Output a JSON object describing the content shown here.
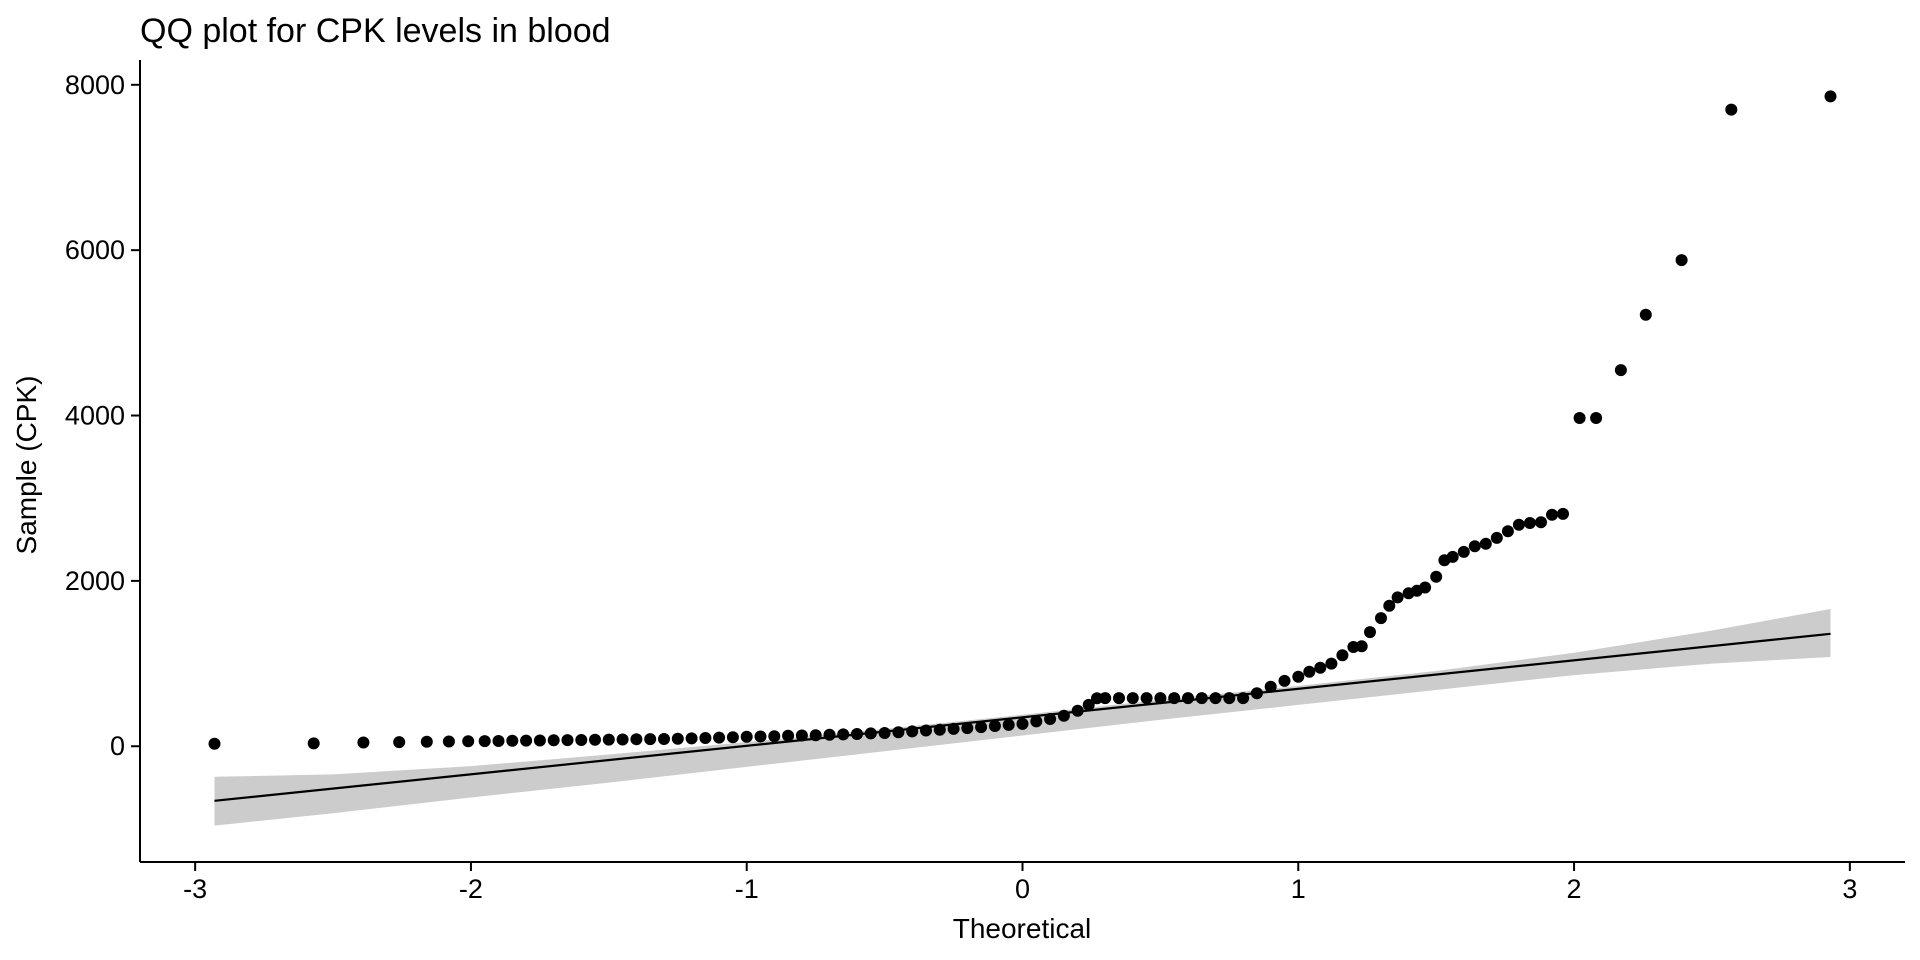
{
  "chart_data": {
    "type": "scatter",
    "title": "QQ plot for CPK levels in blood",
    "xlabel": "Theoretical",
    "ylabel": "Sample (CPK)",
    "xlim": [
      -3.2,
      3.2
    ],
    "ylim": [
      -1400,
      8300
    ],
    "x_ticks": [
      -3,
      -2,
      -1,
      0,
      1,
      2,
      3
    ],
    "x_tick_labels": [
      "-3",
      "-2",
      "-1",
      "0",
      "1",
      "2",
      "3"
    ],
    "y_ticks": [
      0,
      2000,
      4000,
      6000,
      8000
    ],
    "y_tick_labels": [
      "0",
      "2000",
      "4000",
      "6000",
      "8000"
    ],
    "grid": false,
    "legend": "none",
    "colors": {
      "points": "#000000",
      "line": "#000000",
      "band": "#cccccc"
    },
    "reference_line": {
      "x": [
        -2.93,
        2.93
      ],
      "y": [
        -660,
        1360
      ]
    },
    "confidence_band": {
      "x": [
        -2.93,
        -2.5,
        -2.0,
        -1.5,
        -1.0,
        -0.5,
        0.0,
        0.5,
        1.0,
        1.5,
        2.0,
        2.5,
        2.93
      ],
      "lower": [
        -960,
        -810,
        -620,
        -440,
        -250,
        -60,
        130,
        320,
        500,
        680,
        860,
        1000,
        1080
      ],
      "upper": [
        -370,
        -340,
        -240,
        -100,
        50,
        210,
        380,
        560,
        730,
        910,
        1130,
        1400,
        1660
      ]
    },
    "series": [
      {
        "x": [
          -2.93,
          -2.57,
          -2.39,
          -2.26,
          -2.16,
          -2.08,
          -2.01,
          -1.95,
          -1.9,
          -1.85,
          -1.8,
          -1.75,
          -1.7,
          -1.65,
          -1.6,
          -1.55,
          -1.5,
          -1.45,
          -1.4,
          -1.35,
          -1.3,
          -1.25,
          -1.2,
          -1.15,
          -1.1,
          -1.05,
          -1.0,
          -0.95,
          -0.9,
          -0.85,
          -0.8,
          -0.75,
          -0.7,
          -0.65,
          -0.6,
          -0.55,
          -0.5,
          -0.45,
          -0.4,
          -0.35,
          -0.3,
          -0.25,
          -0.2,
          -0.15,
          -0.1,
          -0.05,
          0.0,
          0.05,
          0.1,
          0.15,
          0.2,
          0.24,
          0.27,
          0.3,
          0.35,
          0.4,
          0.45,
          0.5,
          0.55,
          0.6,
          0.65,
          0.7,
          0.75,
          0.8,
          0.85,
          0.9,
          0.95,
          1.0,
          1.04,
          1.08,
          1.12,
          1.16,
          1.2,
          1.23,
          1.26,
          1.3,
          1.33,
          1.36,
          1.4,
          1.43,
          1.46,
          1.5,
          1.53,
          1.56,
          1.6,
          1.64,
          1.68,
          1.72,
          1.76,
          1.8,
          1.84,
          1.88,
          1.92,
          1.96,
          2.02,
          2.08,
          2.17,
          2.26,
          2.39,
          2.57,
          2.93
        ],
        "y": [
          30,
          35,
          45,
          50,
          55,
          58,
          60,
          62,
          64,
          66,
          68,
          70,
          72,
          74,
          76,
          78,
          80,
          82,
          84,
          86,
          88,
          90,
          95,
          100,
          105,
          110,
          115,
          118,
          122,
          126,
          130,
          134,
          138,
          143,
          148,
          155,
          160,
          170,
          180,
          190,
          200,
          210,
          220,
          232,
          245,
          258,
          270,
          300,
          330,
          370,
          430,
          500,
          580,
          582,
          582,
          582,
          582,
          582,
          582,
          582,
          582,
          582,
          582,
          582,
          640,
          720,
          790,
          840,
          900,
          950,
          1000,
          1100,
          1200,
          1210,
          1380,
          1550,
          1700,
          1800,
          1850,
          1880,
          1920,
          2050,
          2250,
          2290,
          2350,
          2420,
          2450,
          2520,
          2600,
          2680,
          2700,
          2710,
          2800,
          2810,
          3970,
          3970,
          4550,
          5220,
          5880,
          7700,
          7860
        ]
      }
    ]
  }
}
